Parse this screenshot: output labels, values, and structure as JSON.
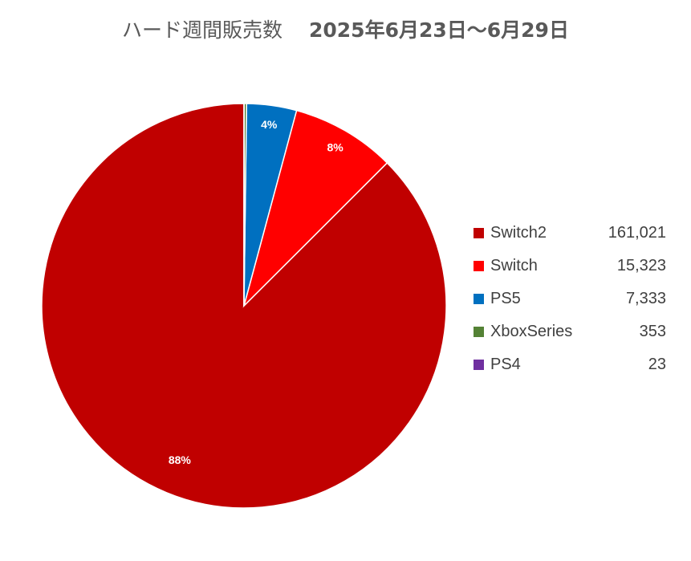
{
  "chart_data": {
    "type": "pie",
    "title": "ハード週間販売数　2025年6月23日～6月29日",
    "title_parts": {
      "main": "ハード週間販売数",
      "date": "2025年6月23日～6月29日"
    },
    "slices": [
      {
        "name": "Switch2",
        "value": 161021,
        "value_label": "161,021",
        "percent_label": "88%",
        "color": "#C00000"
      },
      {
        "name": "Switch",
        "value": 15323,
        "value_label": "15,323",
        "percent_label": "8%",
        "color": "#FF0000"
      },
      {
        "name": "PS5",
        "value": 7333,
        "value_label": "7,333",
        "percent_label": "4%",
        "color": "#0070C0"
      },
      {
        "name": "XboxSeries",
        "value": 353,
        "value_label": "353",
        "percent_label": "",
        "color": "#548235"
      },
      {
        "name": "PS4",
        "value": 23,
        "value_label": "23",
        "percent_label": "",
        "color": "#7030A0"
      }
    ],
    "legend_position": "right",
    "start_angle_deg": 0,
    "direction": "clockwise"
  }
}
